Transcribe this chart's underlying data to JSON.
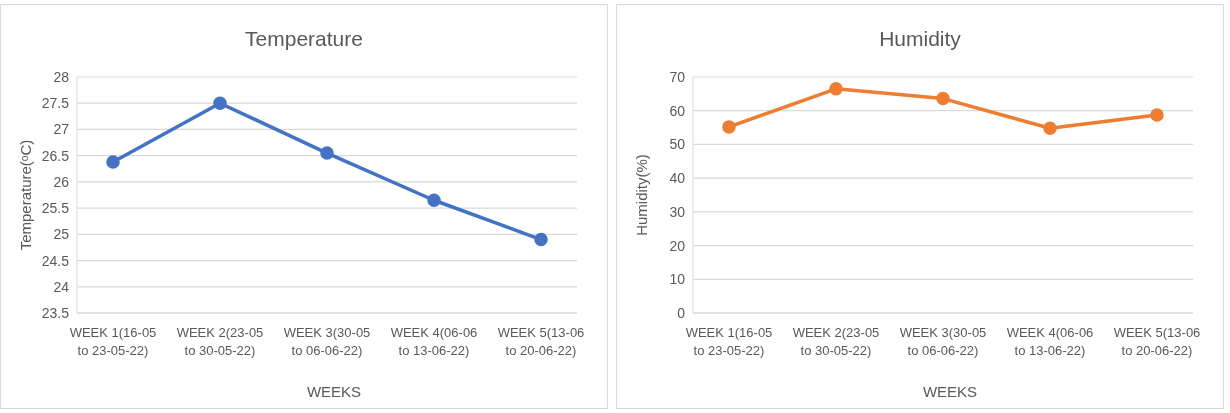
{
  "chart_data": [
    {
      "type": "line",
      "title": "Temperature",
      "xlabel": "WEEKS",
      "ylabel": "Temperature(ᵒC)",
      "categories": [
        "WEEK 1(16-05 to 23-05-22)",
        "WEEK 2(23-05 to 30-05-22)",
        "WEEK 3(30-05 to 06-06-22)",
        "WEEK 4(06-06 to 13-06-22)",
        "WEEK 5(13-06 to 20-06-22)"
      ],
      "series": [
        {
          "color": "#4472c4",
          "values": [
            26.38,
            27.5,
            26.55,
            25.65,
            24.9
          ]
        }
      ],
      "ylim": [
        23.5,
        28
      ],
      "yticks": [
        23.5,
        24,
        24.5,
        25,
        25.5,
        26,
        26.5,
        27,
        27.5,
        28
      ],
      "grid": "y",
      "marker": "circle"
    },
    {
      "type": "line",
      "title": "Humidity",
      "xlabel": "WEEKS",
      "ylabel": "Humidity(%)",
      "categories": [
        "WEEK 1(16-05 to 23-05-22)",
        "WEEK 2(23-05 to 30-05-22)",
        "WEEK 3(30-05 to 06-06-22)",
        "WEEK 4(06-06 to 13-06-22)",
        "WEEK 5(13-06 to 20-06-22)"
      ],
      "series": [
        {
          "color": "#ed7d31",
          "values": [
            55.2,
            66.5,
            63.6,
            54.8,
            58.7
          ]
        }
      ],
      "ylim": [
        0,
        70
      ],
      "yticks": [
        0,
        10,
        20,
        30,
        40,
        50,
        60,
        70
      ],
      "grid": "y",
      "marker": "circle"
    }
  ]
}
